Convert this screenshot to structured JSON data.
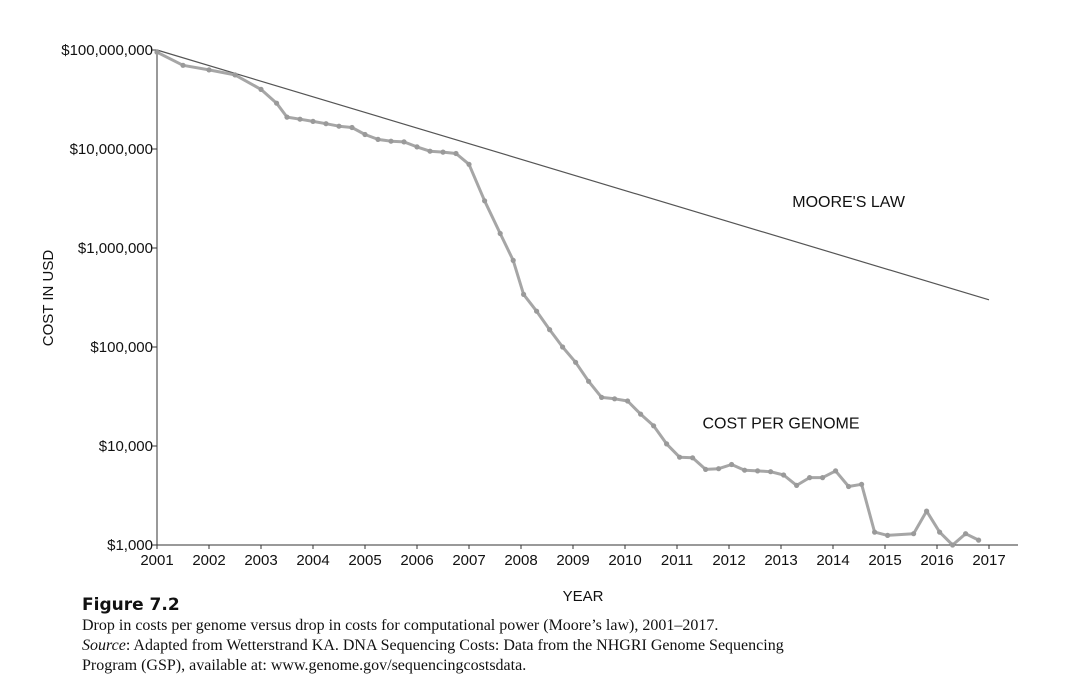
{
  "chart_data": {
    "type": "line",
    "xlabel": "YEAR",
    "ylabel": "COST IN USD",
    "y_scale": "log",
    "xlim": [
      2001,
      2017.3
    ],
    "ylim": [
      1000,
      100000000
    ],
    "x_ticks": [
      "2001",
      "2002",
      "2003",
      "2004",
      "2005",
      "2006",
      "2007",
      "2008",
      "2009",
      "2010",
      "2011",
      "2012",
      "2013",
      "2014",
      "2015",
      "2016",
      "2017"
    ],
    "y_ticks": [
      {
        "value": 1000,
        "label": "$1,000"
      },
      {
        "value": 10000,
        "label": "$10,000"
      },
      {
        "value": 100000,
        "label": "$100,000"
      },
      {
        "value": 1000000,
        "label": "$1,000,000"
      },
      {
        "value": 10000000,
        "label": "$10,000,000"
      },
      {
        "value": 100000000,
        "label": "$100,000,000"
      }
    ],
    "grid": false,
    "series": [
      {
        "name": "MOORE'S LAW",
        "color": "#555555",
        "markers": false,
        "points": [
          [
            2001,
            100000000
          ],
          [
            2017,
            300000
          ]
        ]
      },
      {
        "name": "COST PER GENOME",
        "color": "#a6a6a6",
        "markers": true,
        "points": [
          [
            2001.0,
            95000000
          ],
          [
            2001.5,
            70000000
          ],
          [
            2002.0,
            63000000
          ],
          [
            2002.5,
            56000000
          ],
          [
            2003.0,
            40000000
          ],
          [
            2003.3,
            29000000
          ],
          [
            2003.5,
            21000000
          ],
          [
            2003.75,
            20000000
          ],
          [
            2004.0,
            19000000
          ],
          [
            2004.25,
            18000000
          ],
          [
            2004.5,
            17000000
          ],
          [
            2004.75,
            16500000
          ],
          [
            2005.0,
            14000000
          ],
          [
            2005.25,
            12500000
          ],
          [
            2005.5,
            12000000
          ],
          [
            2005.75,
            11800000
          ],
          [
            2006.0,
            10500000
          ],
          [
            2006.25,
            9500000
          ],
          [
            2006.5,
            9300000
          ],
          [
            2006.75,
            9000000
          ],
          [
            2007.0,
            7000000
          ],
          [
            2007.3,
            3000000
          ],
          [
            2007.6,
            1400000
          ],
          [
            2007.85,
            750000
          ],
          [
            2008.05,
            340000
          ],
          [
            2008.3,
            230000
          ],
          [
            2008.55,
            150000
          ],
          [
            2008.8,
            100000
          ],
          [
            2009.05,
            70000
          ],
          [
            2009.3,
            45000
          ],
          [
            2009.55,
            31000
          ],
          [
            2009.8,
            30000
          ],
          [
            2010.05,
            28500
          ],
          [
            2010.3,
            21000
          ],
          [
            2010.55,
            16000
          ],
          [
            2010.8,
            10500
          ],
          [
            2011.05,
            7700
          ],
          [
            2011.3,
            7600
          ],
          [
            2011.55,
            5800
          ],
          [
            2011.8,
            5900
          ],
          [
            2012.05,
            6500
          ],
          [
            2012.3,
            5700
          ],
          [
            2012.55,
            5600
          ],
          [
            2012.8,
            5500
          ],
          [
            2013.05,
            5100
          ],
          [
            2013.3,
            4000
          ],
          [
            2013.55,
            4800
          ],
          [
            2013.8,
            4800
          ],
          [
            2014.05,
            5600
          ],
          [
            2014.3,
            3900
          ],
          [
            2014.55,
            4100
          ],
          [
            2014.8,
            1350
          ],
          [
            2015.05,
            1250
          ],
          [
            2015.55,
            1300
          ],
          [
            2015.8,
            2200
          ],
          [
            2016.05,
            1350
          ],
          [
            2016.3,
            1000
          ],
          [
            2016.55,
            1300
          ],
          [
            2016.8,
            1120
          ]
        ]
      }
    ],
    "annotations": [
      {
        "text": "MOORE'S LAW",
        "x": 2014.3,
        "y": 2600000
      },
      {
        "text": "COST PER GENOME",
        "x": 2013.0,
        "y": 15000
      }
    ]
  },
  "caption": {
    "figure_label": "Figure 7.2",
    "line1": "Drop in costs per genome versus drop in costs for computational power (Moore’s law), 2001–2017.",
    "source_label": "Source",
    "line2_rest": ": Adapted from Wetterstrand KA. DNA Sequencing Costs: Data from the NHGRI Genome Sequencing",
    "line3": "Program (GSP), available at: www.genome.gov/sequencingcostsdata."
  }
}
